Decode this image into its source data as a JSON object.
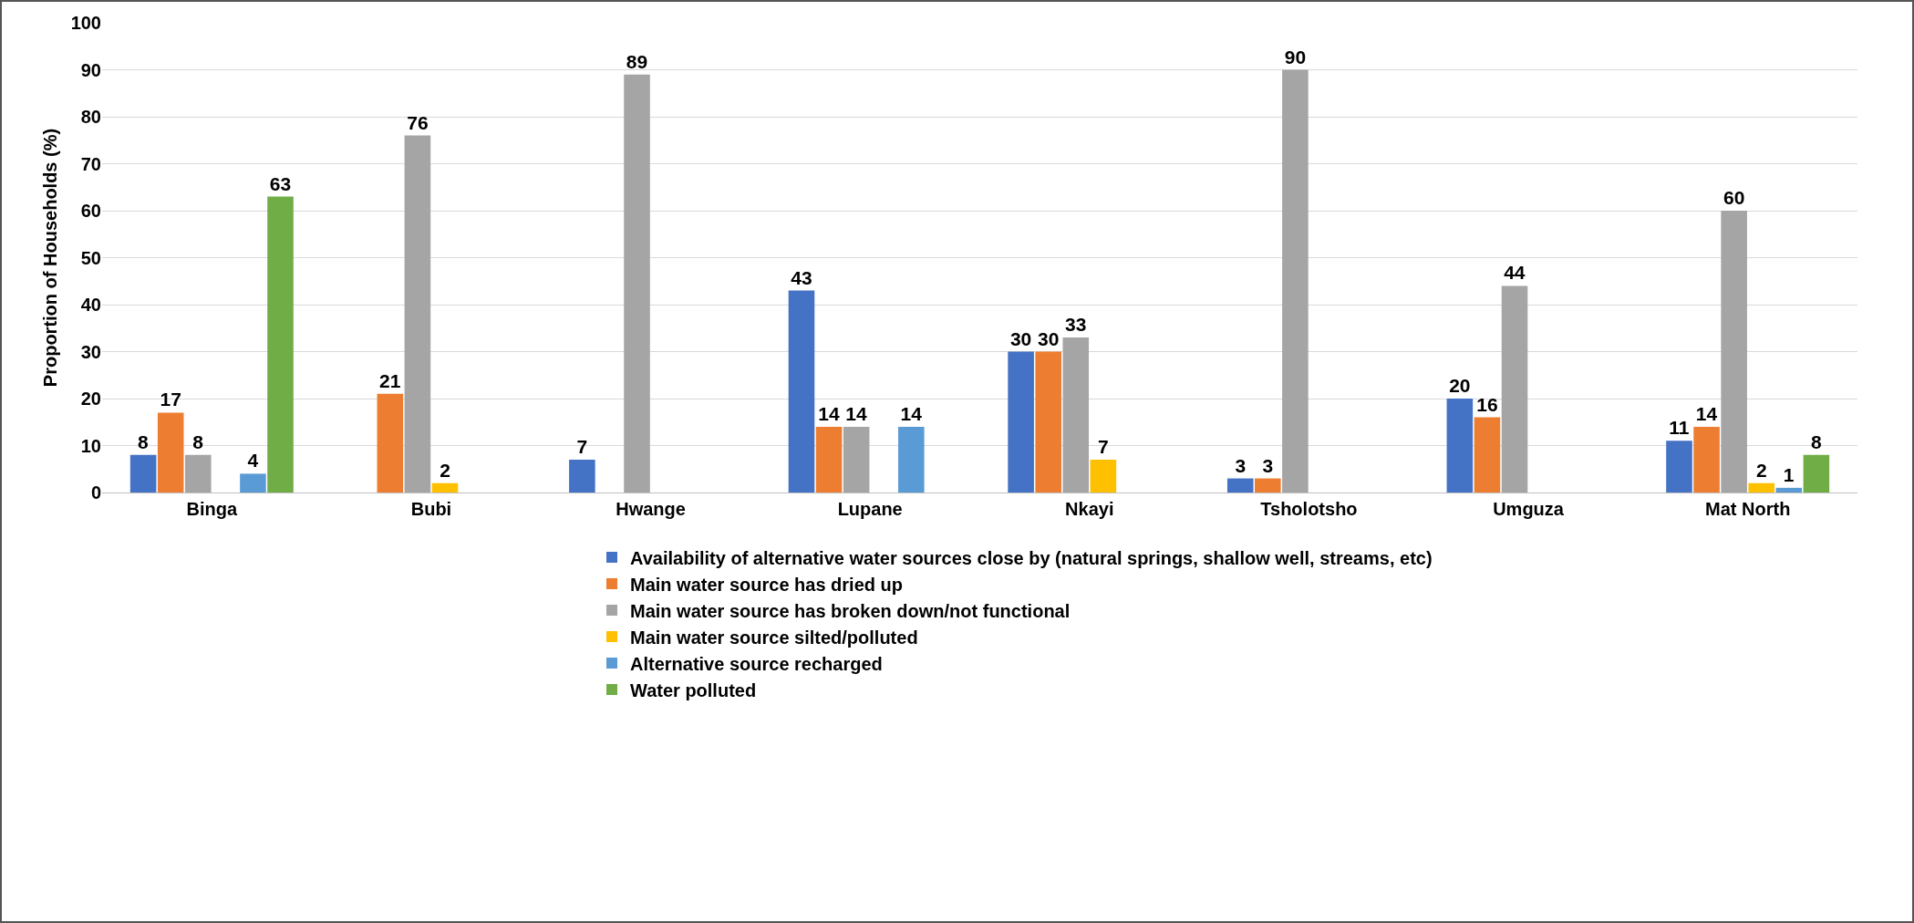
{
  "chart_data": {
    "type": "bar",
    "ylabel": "Proportion of Households (%)",
    "categories": [
      "Binga",
      "Bubi",
      "Hwange",
      "Lupane",
      "Nkayi",
      "Tsholotsho",
      "Umguza",
      "Mat North"
    ],
    "series": [
      {
        "name": "Availability of alternative water sources close by (natural springs, shallow well, streams, etc)",
        "color": "#4472c4",
        "values": [
          8,
          null,
          7,
          43,
          30,
          3,
          20,
          11
        ]
      },
      {
        "name": "Main water source has dried up",
        "color": "#ed7d31",
        "values": [
          17,
          21,
          null,
          14,
          30,
          3,
          16,
          14
        ]
      },
      {
        "name": "Main water source has broken down/not functional",
        "color": "#a5a5a5",
        "values": [
          8,
          76,
          89,
          14,
          33,
          90,
          44,
          60
        ]
      },
      {
        "name": "Main water source silted/polluted",
        "color": "#ffc000",
        "values": [
          null,
          2,
          null,
          null,
          7,
          null,
          null,
          2
        ]
      },
      {
        "name": "Alternative source recharged",
        "color": "#5b9bd5",
        "values": [
          4,
          null,
          null,
          14,
          null,
          null,
          null,
          1
        ]
      },
      {
        "name": "Water polluted",
        "color": "#70ad47",
        "values": [
          63,
          null,
          null,
          null,
          null,
          null,
          null,
          8
        ]
      }
    ],
    "ylim": [
      0,
      100
    ],
    "yticks": [
      0,
      10,
      20,
      30,
      40,
      50,
      60,
      70,
      80,
      90,
      100
    ],
    "grid": "y",
    "legend": "bottom",
    "data_labels": true
  }
}
